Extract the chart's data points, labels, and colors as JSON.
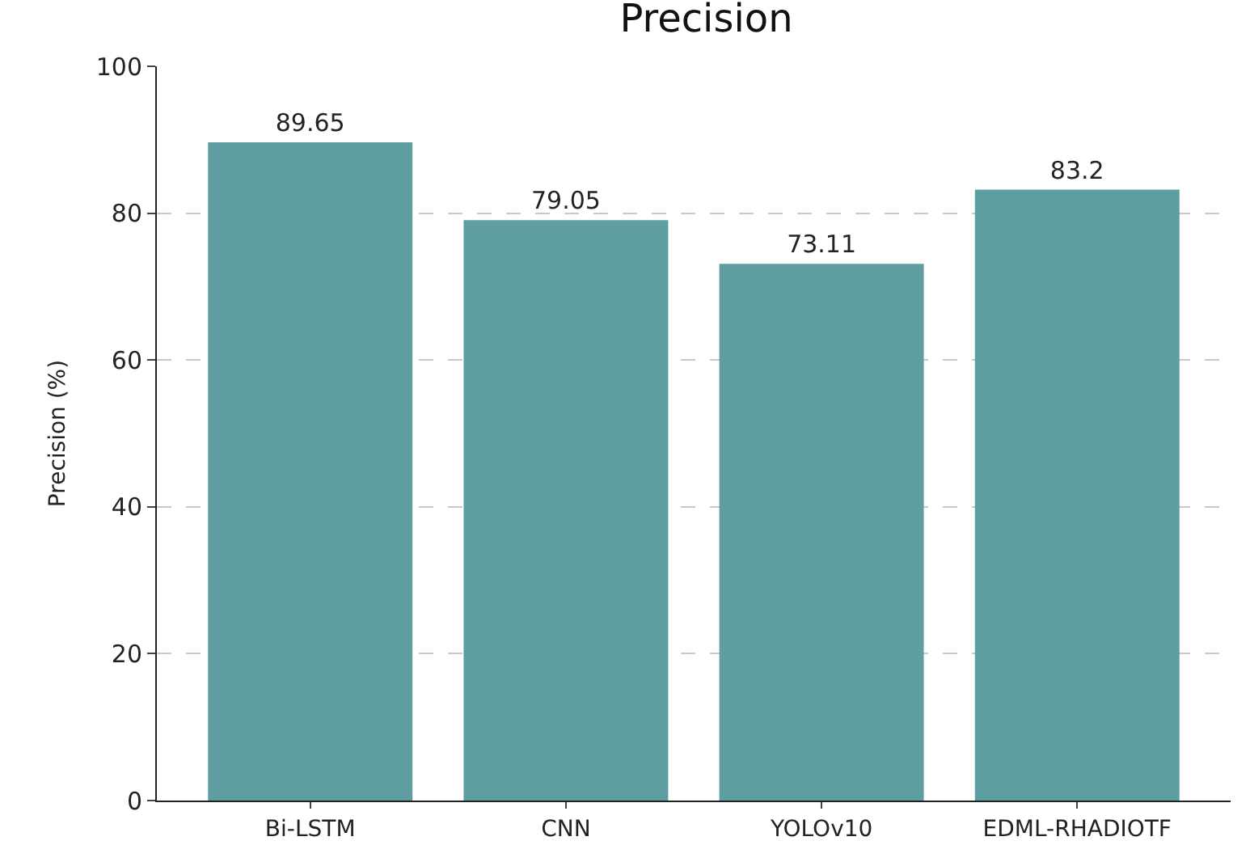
{
  "chart_data": {
    "type": "bar",
    "title": "Precision",
    "ylabel": "Precision (%)",
    "categories": [
      "Bi-LSTM",
      "CNN",
      "YOLOv10",
      "EDML-RHADIOTF"
    ],
    "values": [
      89.65,
      79.05,
      73.11,
      83.2
    ],
    "color": "#5f9ea0",
    "ylim": [
      0,
      100
    ],
    "yticks": [
      0,
      20,
      40,
      60,
      80,
      100
    ],
    "grid": "y",
    "data_labels": true
  }
}
